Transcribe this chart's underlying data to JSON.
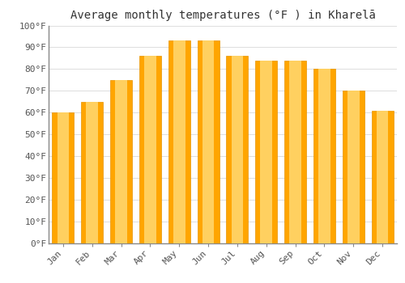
{
  "title": "Average monthly temperatures (°F ) in Kharelā",
  "months": [
    "Jan",
    "Feb",
    "Mar",
    "Apr",
    "May",
    "Jun",
    "Jul",
    "Aug",
    "Sep",
    "Oct",
    "Nov",
    "Dec"
  ],
  "values": [
    60,
    65,
    75,
    86,
    93,
    93,
    86,
    84,
    84,
    80,
    70,
    61
  ],
  "bar_color_face": "#FFA500",
  "bar_color_edge": "#E89400",
  "bar_color_light": "#FFD060",
  "background_color": "#FFFFFF",
  "grid_color": "#DDDDDD",
  "ylim": [
    0,
    100
  ],
  "yticks": [
    0,
    10,
    20,
    30,
    40,
    50,
    60,
    70,
    80,
    90,
    100
  ],
  "ytick_labels": [
    "0°F",
    "10°F",
    "20°F",
    "30°F",
    "40°F",
    "50°F",
    "60°F",
    "70°F",
    "80°F",
    "90°F",
    "100°F"
  ],
  "title_fontsize": 10,
  "tick_fontsize": 8,
  "bar_width": 0.75
}
